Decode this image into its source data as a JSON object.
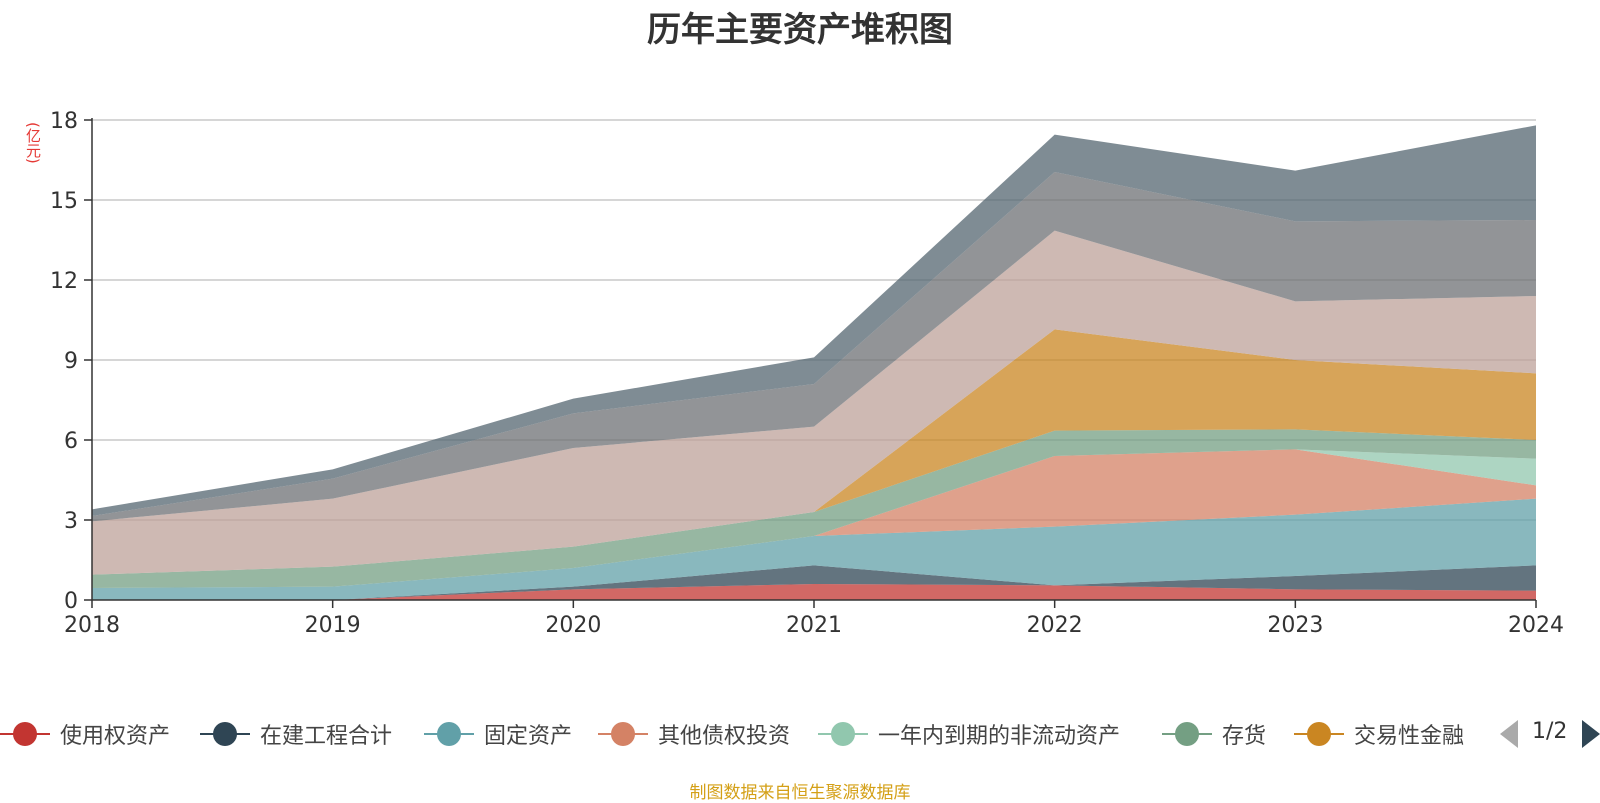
{
  "chart_data": {
    "type": "area",
    "stacked": true,
    "title": "历年主要资产堆积图",
    "ylabel": "(亿元)",
    "x": [
      "2018",
      "2019",
      "2020",
      "2021",
      "2022",
      "2023",
      "2024"
    ],
    "ylim": [
      0,
      18
    ],
    "yticks": [
      0,
      3,
      6,
      9,
      12,
      15,
      18
    ],
    "grid": true,
    "legend_position": "bottom",
    "series": [
      {
        "name": "使用权资产",
        "color": "#c23531",
        "values": [
          0,
          0,
          0.4,
          0.6,
          0.55,
          0.4,
          0.35
        ]
      },
      {
        "name": "在建工程合计",
        "color": "#2f4554",
        "values": [
          0,
          0,
          0.1,
          0.7,
          0,
          0.5,
          0.95
        ]
      },
      {
        "name": "固定资产",
        "color": "#61a0a8",
        "values": [
          0.45,
          0.5,
          0.7,
          1.1,
          2.2,
          2.3,
          2.5
        ]
      },
      {
        "name": "其他债权投资",
        "color": "#d48265",
        "values": [
          0,
          0,
          0,
          0,
          2.65,
          2.45,
          0.5
        ]
      },
      {
        "name": "一年内到期的非流动资产",
        "color": "#91c7ae",
        "values": [
          0,
          0,
          0,
          0,
          0,
          0,
          1.0
        ]
      },
      {
        "name": "存货",
        "color": "#749f83",
        "values": [
          0.5,
          0.75,
          0.8,
          0.9,
          0.95,
          0.75,
          0.7
        ]
      },
      {
        "name": "交易性金融资产",
        "color": "#ca8622",
        "values": [
          0,
          0,
          0,
          0,
          3.8,
          2.6,
          2.5
        ]
      },
      {
        "name": "",
        "color": "#bda29a",
        "values": [
          2.0,
          2.55,
          3.7,
          3.2,
          3.7,
          2.2,
          2.9
        ]
      },
      {
        "name": "",
        "color": "#6e7074",
        "values": [
          0.2,
          0.75,
          1.3,
          1.6,
          2.2,
          3.0,
          2.85
        ]
      },
      {
        "name": "",
        "color": "#546570",
        "values": [
          0.25,
          0.35,
          0.55,
          1.0,
          1.4,
          1.9,
          3.55
        ]
      }
    ]
  },
  "legend": {
    "page_indicator": "1/2",
    "visible_labels": [
      "使用权资产",
      "在建工程合计",
      "固定资产",
      "其他债权投资",
      "一年内到期的非流动资产",
      "存货",
      "交易性金融"
    ]
  },
  "source": "制图数据来自恒生聚源数据库"
}
